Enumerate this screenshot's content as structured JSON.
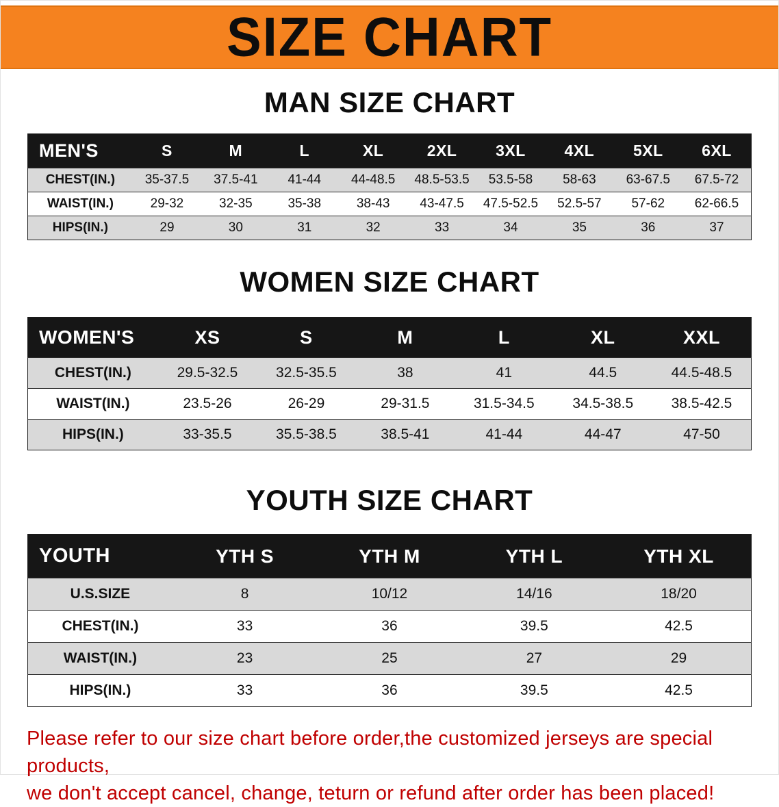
{
  "banner": {
    "title": "SIZE CHART",
    "bg_color": "#F5821F",
    "text_color": "#0d0d0d"
  },
  "sections": [
    {
      "id": "men",
      "heading": "MAN SIZE CHART",
      "table": {
        "header": [
          "MEN'S",
          "S",
          "M",
          "L",
          "XL",
          "2XL",
          "3XL",
          "4XL",
          "5XL",
          "6XL"
        ],
        "rows": [
          [
            "CHEST(IN.)",
            "35-37.5",
            "37.5-41",
            "41-44",
            "44-48.5",
            "48.5-53.5",
            "53.5-58",
            "58-63",
            "63-67.5",
            "67.5-72"
          ],
          [
            "WAIST(IN.)",
            "29-32",
            "32-35",
            "35-38",
            "38-43",
            "43-47.5",
            "47.5-52.5",
            "52.5-57",
            "57-62",
            "62-66.5"
          ],
          [
            "HIPS(IN.)",
            "29",
            "30",
            "31",
            "32",
            "33",
            "34",
            "35",
            "36",
            "37"
          ]
        ]
      }
    },
    {
      "id": "women",
      "heading": "WOMEN SIZE CHART",
      "table": {
        "header": [
          "WOMEN'S",
          "XS",
          "S",
          "M",
          "L",
          "XL",
          "XXL"
        ],
        "rows": [
          [
            "CHEST(IN.)",
            "29.5-32.5",
            "32.5-35.5",
            "38",
            "41",
            "44.5",
            "44.5-48.5"
          ],
          [
            "WAIST(IN.)",
            "23.5-26",
            "26-29",
            "29-31.5",
            "31.5-34.5",
            "34.5-38.5",
            "38.5-42.5"
          ],
          [
            "HIPS(IN.)",
            "33-35.5",
            "35.5-38.5",
            "38.5-41",
            "41-44",
            "44-47",
            "47-50"
          ]
        ]
      }
    },
    {
      "id": "youth",
      "heading": "YOUTH SIZE CHART",
      "table": {
        "header": [
          "YOUTH",
          "YTH S",
          "YTH M",
          "YTH L",
          "YTH XL"
        ],
        "rows": [
          [
            "U.S.SIZE",
            "8",
            "10/12",
            "14/16",
            "18/20"
          ],
          [
            "CHEST(IN.)",
            "33",
            "36",
            "39.5",
            "42.5"
          ],
          [
            "WAIST(IN.)",
            "23",
            "25",
            "27",
            "29"
          ],
          [
            "HIPS(IN.)",
            "33",
            "36",
            "39.5",
            "42.5"
          ]
        ]
      }
    }
  ],
  "disclaimer": {
    "line1": "Please refer to our size chart before order,the customized jerseys are special products,",
    "line2": "we don't accept cancel, change, teturn or refund after order has been placed!",
    "color": "#C00000"
  }
}
